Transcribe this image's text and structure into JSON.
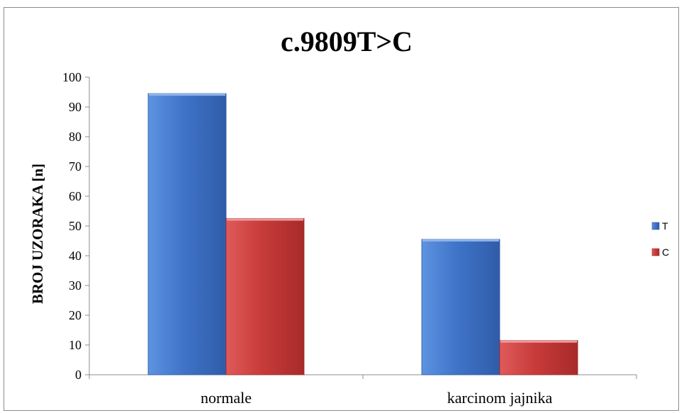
{
  "chart_data": {
    "type": "bar",
    "title": "c.9809T>C",
    "xlabel": "",
    "ylabel": "BROJ UZORAKA [n]",
    "categories": [
      "normale",
      "karcinom jajnika"
    ],
    "series": [
      {
        "name": "T",
        "values": [
          94.5,
          45.5
        ],
        "color": "#3f74c9"
      },
      {
        "name": "C",
        "values": [
          52.5,
          11.5
        ],
        "color": "#c83b3b"
      }
    ],
    "ylim": [
      0,
      100
    ],
    "yticks": [
      0,
      10,
      20,
      30,
      40,
      50,
      60,
      70,
      80,
      90,
      100
    ],
    "grid": false,
    "legend": "right"
  }
}
